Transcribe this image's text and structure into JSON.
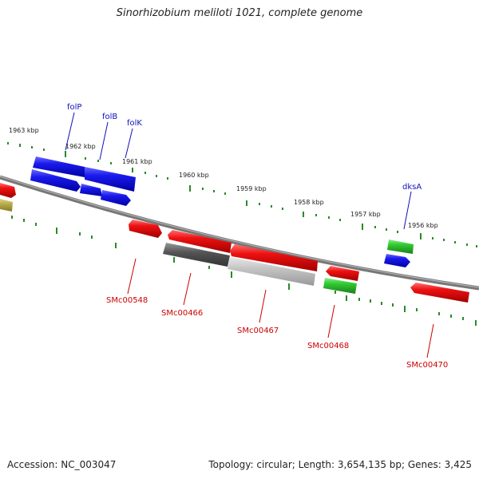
{
  "title": "Sinorhizobium meliloti 1021, complete genome",
  "footer": {
    "accession": "Accession: NC_003047",
    "info": "Topology: circular; Length: 3,654,135 bp; Genes: 3,425"
  },
  "colors": {
    "forward_gene": "#1a1aee",
    "reverse_gene": "#ee1111",
    "green_gene": "#33cc33",
    "gray_gene": "#666666",
    "olive_gene": "#b8ad4c",
    "backbone": "#777777",
    "tick": "#2a8a2a",
    "forward_label": "#1010bb",
    "reverse_label": "#cc0000"
  },
  "scale_labels": [
    "1963 kbp",
    "1962 kbp",
    "1961 kbp",
    "1960 kbp",
    "1959 kbp",
    "1958 kbp",
    "1957 kbp",
    "1956 kbp"
  ],
  "forward_labels": [
    "folP",
    "folB",
    "folK",
    "dksA"
  ],
  "reverse_labels": [
    "SMc00548",
    "SMc00466",
    "SMc00467",
    "SMc00468",
    "SMc00470"
  ]
}
